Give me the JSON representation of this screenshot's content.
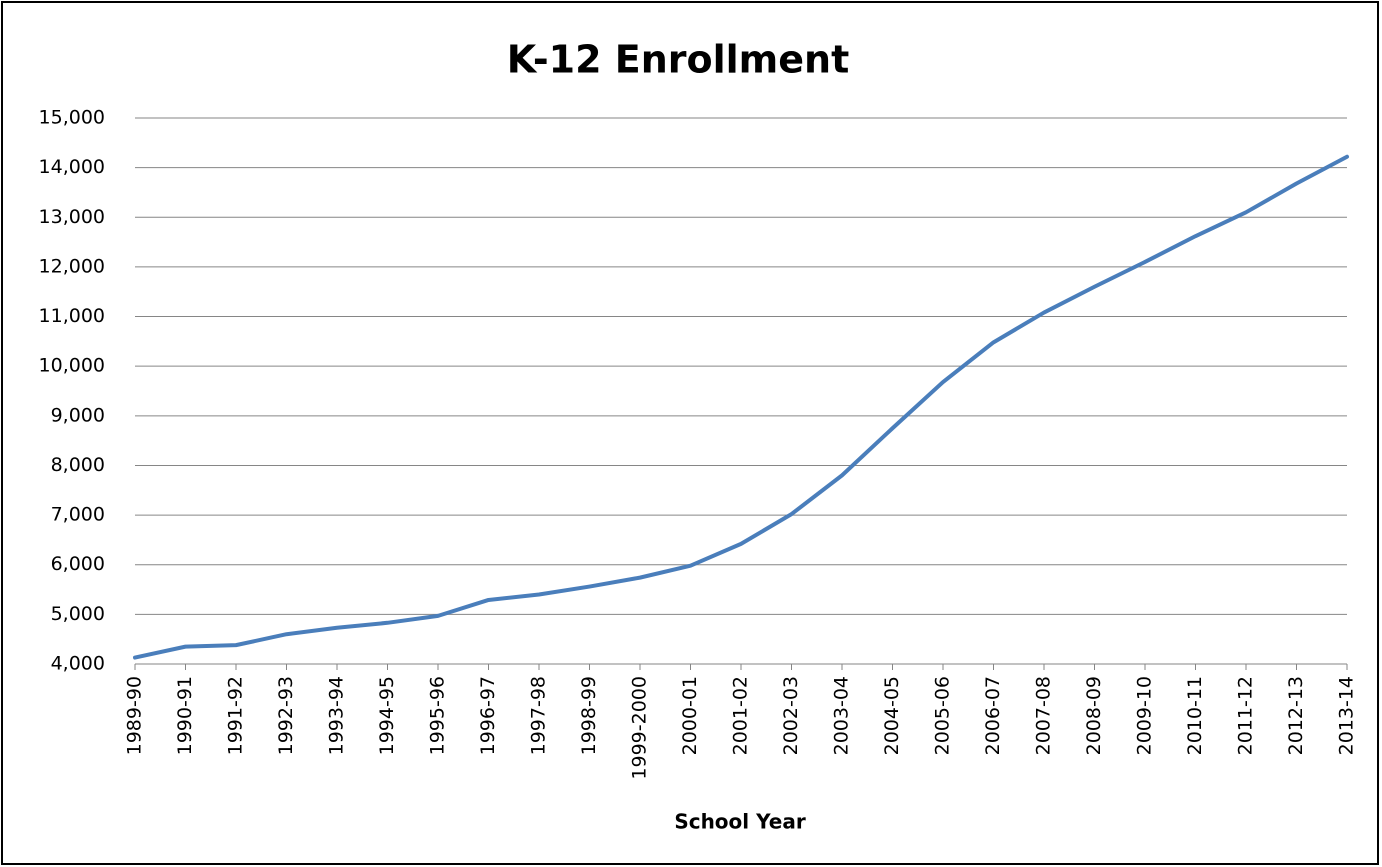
{
  "chart_data": {
    "type": "line",
    "title": "K-12 Enrollment",
    "x_label": "School Year",
    "categories": [
      "1989-90",
      "1990-91",
      "1991-92",
      "1992-93",
      "1993-94",
      "1994-95",
      "1995-96",
      "1996-97",
      "1997-98",
      "1998-99",
      "1999-2000",
      "2000-01",
      "2001-02",
      "2002-03",
      "2003-04",
      "2004-05",
      "2005-06",
      "2006-07",
      "2007-08",
      "2008-09",
      "2009-10",
      "2010-11",
      "2011-12",
      "2012-13",
      "2013-14"
    ],
    "series": [
      {
        "name": "K-12 Enrollment",
        "color": "#4a7ebb",
        "values": [
          4130,
          4350,
          4380,
          4600,
          4730,
          4830,
          4970,
          5290,
          5400,
          5560,
          5740,
          5980,
          6420,
          7020,
          7800,
          8750,
          9680,
          10480,
          11080,
          11600,
          12100,
          12620,
          13100,
          13680,
          14220
        ]
      }
    ],
    "ylim": [
      4000,
      15000
    ],
    "yticks": [
      {
        "value": 4000,
        "label": "4,000"
      },
      {
        "value": 5000,
        "label": "5,000"
      },
      {
        "value": 6000,
        "label": "6,000"
      },
      {
        "value": 7000,
        "label": "7,000"
      },
      {
        "value": 8000,
        "label": "8,000"
      },
      {
        "value": 9000,
        "label": "9,000"
      },
      {
        "value": 10000,
        "label": "10,000"
      },
      {
        "value": 11000,
        "label": "11,000"
      },
      {
        "value": 12000,
        "label": "12,000"
      },
      {
        "value": 13000,
        "label": "13,000"
      },
      {
        "value": 14000,
        "label": "14,000"
      },
      {
        "value": 15000,
        "label": "15,000"
      }
    ],
    "grid": true
  }
}
